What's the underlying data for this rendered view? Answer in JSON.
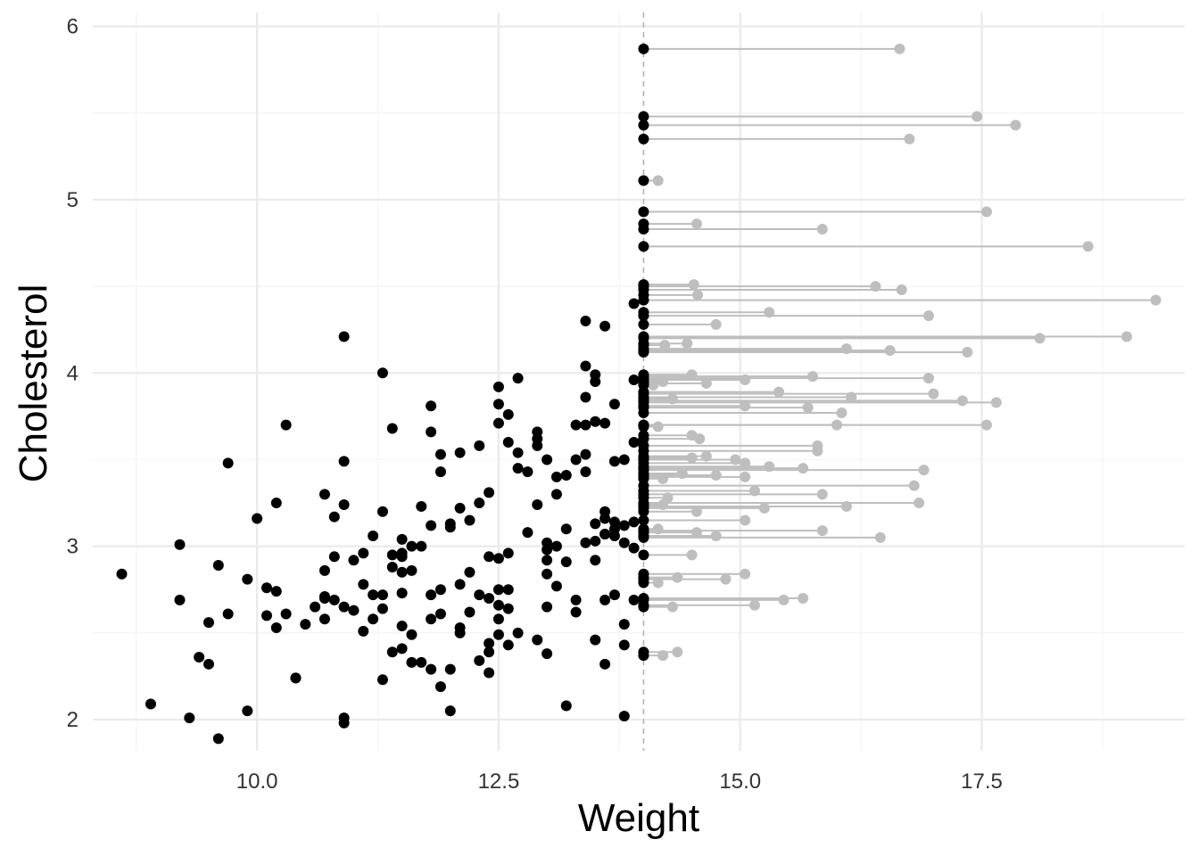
{
  "chart_data": {
    "type": "scatter",
    "xlabel": "Weight",
    "ylabel": "Cholesterol",
    "xlim": [
      8.3,
      19.6
    ],
    "ylim": [
      1.82,
      6.08
    ],
    "x_ticks": [
      10.0,
      12.5,
      15.0,
      17.5
    ],
    "x_tick_labels": [
      "10.0",
      "12.5",
      "15.0",
      "17.5"
    ],
    "y_ticks": [
      2,
      3,
      4,
      5,
      6
    ],
    "y_tick_labels": [
      "2",
      "3",
      "4",
      "5",
      "6"
    ],
    "grid": true,
    "threshold": 14.0,
    "colors": {
      "points": "#000000",
      "censored_points": "#bebebe",
      "segments": "#bebebe",
      "threshold_line": "#b3b3b3",
      "grid_major": "#ebebeb",
      "grid_minor": "#f4f4f4"
    },
    "series": [
      {
        "values": [
          [
            8.6,
            2.84
          ],
          [
            8.9,
            2.09
          ],
          [
            9.2,
            2.69
          ],
          [
            9.2,
            3.01
          ],
          [
            9.3,
            2.01
          ],
          [
            9.4,
            2.36
          ],
          [
            9.5,
            2.32
          ],
          [
            9.5,
            2.56
          ],
          [
            9.6,
            1.89
          ],
          [
            9.6,
            2.89
          ],
          [
            9.7,
            2.61
          ],
          [
            9.7,
            3.48
          ],
          [
            9.9,
            2.05
          ],
          [
            9.9,
            2.81
          ],
          [
            10.0,
            3.16
          ],
          [
            10.1,
            2.6
          ],
          [
            10.1,
            2.76
          ],
          [
            10.2,
            2.53
          ],
          [
            10.2,
            3.25
          ],
          [
            10.2,
            2.74
          ],
          [
            10.3,
            2.61
          ],
          [
            10.3,
            3.7
          ],
          [
            10.4,
            2.24
          ],
          [
            10.4,
            2.24
          ],
          [
            10.5,
            2.55
          ],
          [
            10.6,
            2.65
          ],
          [
            10.7,
            2.7
          ],
          [
            10.7,
            2.71
          ],
          [
            10.7,
            2.58
          ],
          [
            10.7,
            3.3
          ],
          [
            10.7,
            2.86
          ],
          [
            10.8,
            3.17
          ],
          [
            10.8,
            2.94
          ],
          [
            10.8,
            2.69
          ],
          [
            10.9,
            3.49
          ],
          [
            10.9,
            2.01
          ],
          [
            10.9,
            1.98
          ],
          [
            10.9,
            2.65
          ],
          [
            10.9,
            3.24
          ],
          [
            10.9,
            4.21
          ],
          [
            11.0,
            2.92
          ],
          [
            11.0,
            2.63
          ],
          [
            11.1,
            2.96
          ],
          [
            11.1,
            2.78
          ],
          [
            11.1,
            2.51
          ],
          [
            11.2,
            3.06
          ],
          [
            11.2,
            2.58
          ],
          [
            11.2,
            2.72
          ],
          [
            11.3,
            4.0
          ],
          [
            11.3,
            2.23
          ],
          [
            11.3,
            2.64
          ],
          [
            11.3,
            3.2
          ],
          [
            11.3,
            2.72
          ],
          [
            11.4,
            2.88
          ],
          [
            11.4,
            2.95
          ],
          [
            11.4,
            3.68
          ],
          [
            11.4,
            2.39
          ],
          [
            11.5,
            2.41
          ],
          [
            11.5,
            2.96
          ],
          [
            11.5,
            3.04
          ],
          [
            11.5,
            2.94
          ],
          [
            11.5,
            2.85
          ],
          [
            11.5,
            2.54
          ],
          [
            11.5,
            2.73
          ],
          [
            11.6,
            2.33
          ],
          [
            11.6,
            3.0
          ],
          [
            11.6,
            2.86
          ],
          [
            11.6,
            2.49
          ],
          [
            11.7,
            3.23
          ],
          [
            11.7,
            3.0
          ],
          [
            11.7,
            2.33
          ],
          [
            11.8,
            3.81
          ],
          [
            11.8,
            3.12
          ],
          [
            11.8,
            3.66
          ],
          [
            11.8,
            2.58
          ],
          [
            11.8,
            2.29
          ],
          [
            11.8,
            2.72
          ],
          [
            11.9,
            3.43
          ],
          [
            11.9,
            2.75
          ],
          [
            11.9,
            3.53
          ],
          [
            11.9,
            2.19
          ],
          [
            11.9,
            2.61
          ],
          [
            12.0,
            2.29
          ],
          [
            12.0,
            3.13
          ],
          [
            12.0,
            2.05
          ],
          [
            12.0,
            3.11
          ],
          [
            12.1,
            3.22
          ],
          [
            12.1,
            2.78
          ],
          [
            12.1,
            2.53
          ],
          [
            12.1,
            2.5
          ],
          [
            12.1,
            3.54
          ],
          [
            12.2,
            3.15
          ],
          [
            12.2,
            2.85
          ],
          [
            12.2,
            2.62
          ],
          [
            12.3,
            3.58
          ],
          [
            12.3,
            3.25
          ],
          [
            12.3,
            2.34
          ],
          [
            12.3,
            2.72
          ],
          [
            12.4,
            2.94
          ],
          [
            12.4,
            2.44
          ],
          [
            12.4,
            2.7
          ],
          [
            12.4,
            2.39
          ],
          [
            12.4,
            2.27
          ],
          [
            12.4,
            3.31
          ],
          [
            12.5,
            3.71
          ],
          [
            12.5,
            3.82
          ],
          [
            12.5,
            2.66
          ],
          [
            12.5,
            2.93
          ],
          [
            12.5,
            3.92
          ],
          [
            12.5,
            2.58
          ],
          [
            12.5,
            2.49
          ],
          [
            12.5,
            2.75
          ],
          [
            12.6,
            3.76
          ],
          [
            12.6,
            2.96
          ],
          [
            12.6,
            2.75
          ],
          [
            12.6,
            2.64
          ],
          [
            12.6,
            2.43
          ],
          [
            12.6,
            3.6
          ],
          [
            12.7,
            3.45
          ],
          [
            12.7,
            3.54
          ],
          [
            12.7,
            3.97
          ],
          [
            12.7,
            2.5
          ],
          [
            12.8,
            3.08
          ],
          [
            12.8,
            3.43
          ],
          [
            12.9,
            3.66
          ],
          [
            12.9,
            3.58
          ],
          [
            12.9,
            3.62
          ],
          [
            12.9,
            3.24
          ],
          [
            12.9,
            2.46
          ],
          [
            13.0,
            3.02
          ],
          [
            13.0,
            2.92
          ],
          [
            13.0,
            2.84
          ],
          [
            13.0,
            3.5
          ],
          [
            13.0,
            2.38
          ],
          [
            13.0,
            2.65
          ],
          [
            13.0,
            2.98
          ],
          [
            13.1,
            3.0
          ],
          [
            13.1,
            3.4
          ],
          [
            13.1,
            2.77
          ],
          [
            13.1,
            3.3
          ],
          [
            13.2,
            2.91
          ],
          [
            13.2,
            3.1
          ],
          [
            13.2,
            2.08
          ],
          [
            13.2,
            3.41
          ],
          [
            13.3,
            2.69
          ],
          [
            13.3,
            3.5
          ],
          [
            13.3,
            2.62
          ],
          [
            13.3,
            3.7
          ],
          [
            13.4,
            3.02
          ],
          [
            13.4,
            4.3
          ],
          [
            13.4,
            3.53
          ],
          [
            13.4,
            3.7
          ],
          [
            13.4,
            3.86
          ],
          [
            13.4,
            3.43
          ],
          [
            13.4,
            4.04
          ],
          [
            13.5,
            2.46
          ],
          [
            13.5,
            3.13
          ],
          [
            13.5,
            3.95
          ],
          [
            13.5,
            2.92
          ],
          [
            13.5,
            3.72
          ],
          [
            13.5,
            3.99
          ],
          [
            13.5,
            3.03
          ],
          [
            13.6,
            2.32
          ],
          [
            13.6,
            3.16
          ],
          [
            13.6,
            2.69
          ],
          [
            13.6,
            3.2
          ],
          [
            13.6,
            3.07
          ],
          [
            13.6,
            4.27
          ],
          [
            13.6,
            3.07
          ],
          [
            13.6,
            3.71
          ],
          [
            13.7,
            3.06
          ],
          [
            13.7,
            3.82
          ],
          [
            13.7,
            3.49
          ],
          [
            13.7,
            3.1
          ],
          [
            13.7,
            2.72
          ],
          [
            13.7,
            3.14
          ],
          [
            13.8,
            2.55
          ],
          [
            13.8,
            2.43
          ],
          [
            13.8,
            3.02
          ],
          [
            13.8,
            3.5
          ],
          [
            13.8,
            2.02
          ],
          [
            13.8,
            3.12
          ],
          [
            13.9,
            2.69
          ],
          [
            13.9,
            2.99
          ],
          [
            13.9,
            3.6
          ],
          [
            13.9,
            4.4
          ],
          [
            13.9,
            3.96
          ],
          [
            13.9,
            3.14
          ]
        ]
      },
      {
        "segments": [
          [
            14.0,
            5.87,
            16.65
          ],
          [
            14.0,
            5.48,
            17.45
          ],
          [
            14.0,
            5.43,
            17.85
          ],
          [
            14.0,
            5.35,
            16.75
          ],
          [
            14.0,
            5.11,
            14.15
          ],
          [
            14.0,
            4.93,
            17.55
          ],
          [
            14.0,
            4.86,
            14.55
          ],
          [
            14.0,
            4.83,
            15.85
          ],
          [
            14.0,
            4.73,
            18.6
          ],
          [
            14.0,
            4.51,
            14.52
          ],
          [
            14.0,
            4.5,
            16.4
          ],
          [
            14.0,
            4.48,
            16.67
          ],
          [
            14.0,
            4.45,
            14.56
          ],
          [
            14.0,
            4.42,
            19.3
          ],
          [
            14.0,
            4.35,
            15.3
          ],
          [
            14.0,
            4.33,
            16.95
          ],
          [
            14.0,
            4.28,
            14.75
          ],
          [
            14.0,
            4.21,
            19.0
          ],
          [
            14.0,
            4.2,
            18.1
          ],
          [
            14.0,
            4.17,
            14.45
          ],
          [
            14.0,
            4.16,
            14.22
          ],
          [
            14.0,
            4.14,
            16.1
          ],
          [
            14.0,
            4.13,
            16.55
          ],
          [
            14.0,
            4.12,
            17.35
          ],
          [
            14.0,
            3.99,
            14.5
          ],
          [
            14.0,
            3.98,
            15.75
          ],
          [
            14.0,
            3.97,
            16.95
          ],
          [
            14.0,
            3.96,
            15.05
          ],
          [
            14.0,
            3.95,
            14.2
          ],
          [
            14.0,
            3.94,
            14.65
          ],
          [
            14.0,
            3.93,
            14.1
          ],
          [
            14.0,
            3.89,
            15.4
          ],
          [
            14.0,
            3.88,
            17.0
          ],
          [
            14.0,
            3.86,
            16.15
          ],
          [
            14.0,
            3.85,
            14.3
          ],
          [
            14.0,
            3.84,
            17.3
          ],
          [
            14.0,
            3.83,
            17.65
          ],
          [
            14.0,
            3.81,
            15.05
          ],
          [
            14.0,
            3.8,
            15.7
          ],
          [
            14.0,
            3.77,
            16.05
          ],
          [
            14.0,
            3.7,
            17.55
          ],
          [
            14.0,
            3.7,
            16.0
          ],
          [
            14.0,
            3.69,
            14.15
          ],
          [
            14.0,
            3.64,
            14.5
          ],
          [
            14.0,
            3.62,
            14.58
          ],
          [
            14.0,
            3.58,
            15.8
          ],
          [
            14.0,
            3.55,
            15.8
          ],
          [
            14.0,
            3.52,
            14.65
          ],
          [
            14.0,
            3.51,
            14.5
          ],
          [
            14.0,
            3.5,
            14.95
          ],
          [
            14.0,
            3.48,
            15.05
          ],
          [
            14.0,
            3.46,
            15.3
          ],
          [
            14.0,
            3.45,
            15.65
          ],
          [
            14.0,
            3.44,
            16.9
          ],
          [
            14.0,
            3.42,
            14.4
          ],
          [
            14.0,
            3.41,
            14.75
          ],
          [
            14.0,
            3.4,
            15.05
          ],
          [
            14.0,
            3.39,
            14.2
          ],
          [
            14.0,
            3.35,
            16.8
          ],
          [
            14.0,
            3.32,
            15.15
          ],
          [
            14.0,
            3.3,
            15.85
          ],
          [
            14.0,
            3.28,
            14.25
          ],
          [
            14.0,
            3.25,
            16.85
          ],
          [
            14.0,
            3.24,
            14.2
          ],
          [
            14.0,
            3.23,
            16.1
          ],
          [
            14.0,
            3.22,
            15.25
          ],
          [
            14.0,
            3.2,
            14.55
          ],
          [
            14.0,
            3.15,
            15.05
          ],
          [
            14.0,
            3.1,
            14.15
          ],
          [
            14.0,
            3.09,
            15.85
          ],
          [
            14.0,
            3.08,
            14.55
          ],
          [
            14.0,
            3.06,
            14.75
          ],
          [
            14.0,
            3.05,
            16.45
          ],
          [
            14.0,
            2.95,
            14.5
          ],
          [
            14.0,
            2.84,
            15.05
          ],
          [
            14.0,
            2.82,
            14.35
          ],
          [
            14.0,
            2.81,
            14.85
          ],
          [
            14.0,
            2.79,
            14.15
          ],
          [
            14.0,
            2.7,
            15.65
          ],
          [
            14.0,
            2.69,
            15.45
          ],
          [
            14.0,
            2.66,
            15.15
          ],
          [
            14.0,
            2.65,
            14.3
          ],
          [
            14.0,
            2.39,
            14.35
          ],
          [
            14.0,
            2.37,
            14.2
          ]
        ]
      }
    ]
  }
}
